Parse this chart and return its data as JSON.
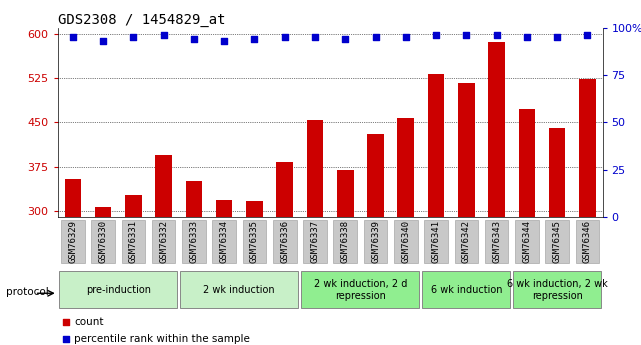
{
  "title": "GDS2308 / 1454829_at",
  "samples": [
    "GSM76329",
    "GSM76330",
    "GSM76331",
    "GSM76332",
    "GSM76333",
    "GSM76334",
    "GSM76335",
    "GSM76336",
    "GSM76337",
    "GSM76338",
    "GSM76339",
    "GSM76340",
    "GSM76341",
    "GSM76342",
    "GSM76343",
    "GSM76344",
    "GSM76345",
    "GSM76346"
  ],
  "counts": [
    355,
    308,
    328,
    395,
    352,
    320,
    318,
    383,
    455,
    370,
    430,
    458,
    532,
    517,
    585,
    472,
    440,
    524
  ],
  "percentile_ranks": [
    95,
    93,
    95,
    96,
    94,
    93,
    94,
    95,
    95,
    94,
    95,
    95,
    96,
    96,
    96,
    95,
    95,
    96
  ],
  "ylim_left": [
    290,
    610
  ],
  "ylim_right": [
    0,
    100
  ],
  "yticks_left": [
    300,
    375,
    450,
    525,
    600
  ],
  "yticks_right": [
    0,
    25,
    50,
    75,
    100
  ],
  "bar_color": "#cc0000",
  "dot_color": "#0000cc",
  "background_color": "#ffffff",
  "tick_box_color": "#c8c8c8",
  "protocol_groups": [
    {
      "label": "pre-induction",
      "start": 0,
      "end": 3,
      "color": "#c8f0c8"
    },
    {
      "label": "2 wk induction",
      "start": 4,
      "end": 7,
      "color": "#c8f0c8"
    },
    {
      "label": "2 wk induction, 2 d\nrepression",
      "start": 8,
      "end": 11,
      "color": "#90ee90"
    },
    {
      "label": "6 wk induction",
      "start": 12,
      "end": 14,
      "color": "#90ee90"
    },
    {
      "label": "6 wk induction, 2 wk\nrepression",
      "start": 15,
      "end": 17,
      "color": "#90ee90"
    }
  ],
  "legend_items": [
    {
      "label": "count",
      "color": "#cc0000"
    },
    {
      "label": "percentile rank within the sample",
      "color": "#0000cc"
    }
  ],
  "protocol_label": "protocol",
  "title_fontsize": 10,
  "tick_fontsize": 6.5,
  "axis_fontsize": 8,
  "proto_fontsize": 7
}
